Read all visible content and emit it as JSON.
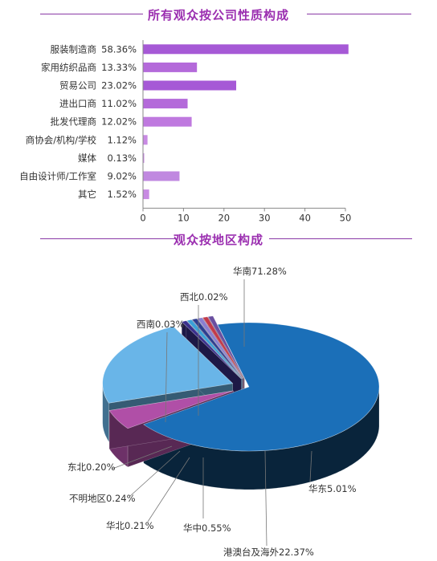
{
  "chart_data": [
    {
      "type": "bar",
      "orientation": "horizontal",
      "title": "所有观众按公司性质构成",
      "categories": [
        "服装制造商",
        "家用纺织品商",
        "贸易公司",
        "进出口商",
        "批发代理商",
        "商协会/机构/学校",
        "媒体",
        "自由设计师/工作室",
        "其它"
      ],
      "values": [
        58.36,
        13.33,
        23.02,
        11.02,
        12.02,
        1.12,
        0.13,
        9.02,
        1.52
      ],
      "value_labels": [
        "58.36%",
        "13.33%",
        "23.02%",
        "11.02%",
        "12.02%",
        "1.12%",
        "0.13%",
        "9.02%",
        "1.52%"
      ],
      "xlim": [
        0,
        50
      ],
      "xticks": [
        "0",
        "10",
        "20",
        "30",
        "40",
        "50"
      ],
      "colors": [
        "#a659d6",
        "#b46ada",
        "#a659d6",
        "#b46ada",
        "#bf79df",
        "#c88ae3",
        "#c88ae3",
        "#c088e0",
        "#c88ae3"
      ],
      "grid": false
    },
    {
      "type": "pie",
      "title": "观众按地区构成",
      "labels": [
        "华南",
        "华东",
        "港澳台及海外",
        "华中",
        "华北",
        "不明地区",
        "东北",
        "西南",
        "西北"
      ],
      "values": [
        71.28,
        5.01,
        22.37,
        0.55,
        0.21,
        0.24,
        0.2,
        0.03,
        0.02
      ],
      "value_labels": [
        "71.28%",
        "5.01%",
        "22.37%",
        "0.55%",
        "0.21%",
        "0.24%",
        "0.20%",
        "0.03%",
        "0.02%"
      ],
      "colors": [
        "#1b6fb8",
        "#b04fa7",
        "#69b5e8",
        "#3a2f8c",
        "#3aa0d8",
        "#2e3d8f",
        "#8a7fd0",
        "#c23a4a",
        "#6a4fa0"
      ],
      "style": "3d-exploded"
    }
  ]
}
